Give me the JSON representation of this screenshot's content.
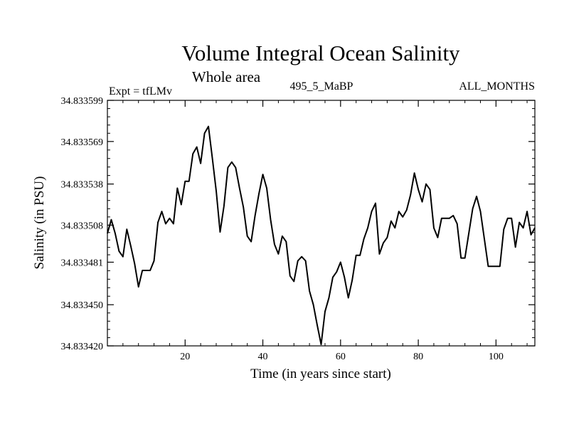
{
  "chart_data": {
    "type": "line",
    "title": "Volume Integral Ocean Salinity",
    "subtitle": "Whole area",
    "header_left": "Expt = tfLMv",
    "header_center": "495_5_MaBP",
    "header_right": "ALL_MONTHS",
    "xlabel": "Time (in years since start)",
    "ylabel": "Salinity (in PSU)",
    "xlim": [
      0,
      110
    ],
    "ylim": [
      34.83342,
      34.833599
    ],
    "x_ticks": [
      20,
      40,
      60,
      80,
      100
    ],
    "y_ticks": [
      34.83342,
      34.83345,
      34.833481,
      34.833508,
      34.833538,
      34.833569,
      34.833599
    ],
    "y_tick_labels": [
      "34.833420",
      "34.833450",
      "34.833481",
      "34.833508",
      "34.833538",
      "34.833569",
      "34.833599"
    ],
    "series": [
      {
        "name": "salinity",
        "x": [
          0,
          1,
          2,
          3,
          4,
          5,
          6,
          7,
          8,
          9,
          10,
          11,
          12,
          13,
          14,
          15,
          16,
          17,
          18,
          19,
          20,
          21,
          22,
          23,
          24,
          25,
          26,
          27,
          28,
          29,
          30,
          31,
          32,
          33,
          34,
          35,
          36,
          37,
          38,
          39,
          40,
          41,
          42,
          43,
          44,
          45,
          46,
          47,
          48,
          49,
          50,
          51,
          52,
          53,
          54,
          55,
          56,
          57,
          58,
          59,
          60,
          61,
          62,
          63,
          64,
          65,
          66,
          67,
          68,
          69,
          70,
          71,
          72,
          73,
          74,
          75,
          76,
          77,
          78,
          79,
          80,
          81,
          82,
          83,
          84,
          85,
          86,
          87,
          88,
          89,
          90,
          91,
          92,
          93,
          94,
          95,
          96,
          97,
          98,
          99,
          100,
          101,
          102,
          103,
          104,
          105,
          106,
          107,
          108,
          109,
          110
        ],
        "values": [
          34.833502,
          34.833512,
          34.833502,
          34.833489,
          34.833485,
          34.833505,
          34.833493,
          34.83348,
          34.833463,
          34.833475,
          34.833475,
          34.833475,
          34.833482,
          34.83351,
          34.833518,
          34.833509,
          34.833513,
          34.833509,
          34.833535,
          34.833523,
          34.83354,
          34.83354,
          34.83356,
          34.833565,
          34.833553,
          34.833575,
          34.83358,
          34.833557,
          34.833533,
          34.833503,
          34.833522,
          34.83355,
          34.833554,
          34.83355,
          34.833535,
          34.833521,
          34.8335,
          34.833496,
          34.833515,
          34.833531,
          34.833545,
          34.833535,
          34.833512,
          34.833494,
          34.833487,
          34.8335,
          34.833496,
          34.833471,
          34.833467,
          34.833482,
          34.833485,
          34.833482,
          34.83346,
          34.83345,
          34.833435,
          34.833421,
          34.833445,
          34.833455,
          34.83347,
          34.833474,
          34.833481,
          34.83347,
          34.833455,
          34.833468,
          34.833486,
          34.833486,
          34.833498,
          34.833506,
          34.833518,
          34.833524,
          34.833487,
          34.833495,
          34.833499,
          34.833511,
          34.833506,
          34.833518,
          34.833514,
          34.833519,
          34.83353,
          34.833546,
          34.833534,
          34.833525,
          34.833538,
          34.833534,
          34.833506,
          34.833499,
          34.833513,
          34.833513,
          34.833513,
          34.833515,
          34.833509,
          34.833484,
          34.833484,
          34.833502,
          34.83352,
          34.833529,
          34.833518,
          34.833498,
          34.833478,
          34.833478,
          34.833478,
          34.833478,
          34.833505,
          34.833513,
          34.833513,
          34.833492,
          34.83351,
          34.833506,
          34.833518,
          34.833501,
          34.833506
        ]
      }
    ]
  }
}
